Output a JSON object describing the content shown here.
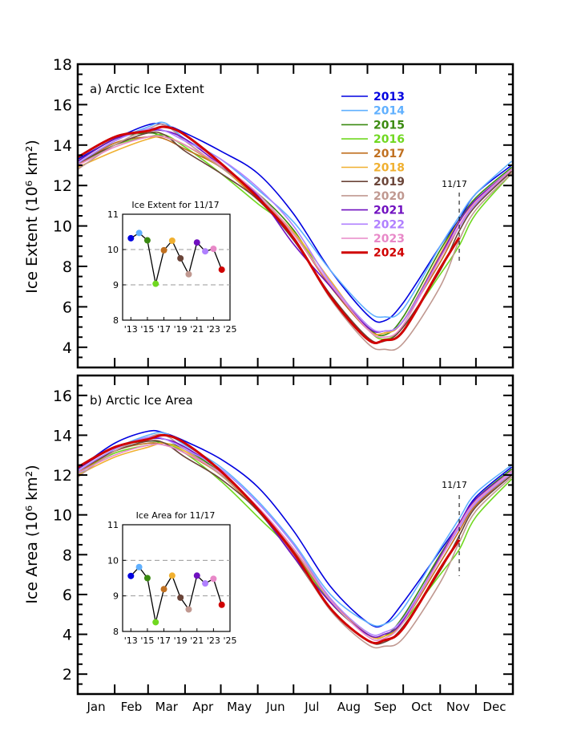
{
  "chart_data": [
    {
      "type": "line",
      "title": "a) Arctic Ice Extent",
      "xlabel": "",
      "ylabel": "Ice Extent (10⁶ km²)",
      "ylim": [
        3,
        18
      ],
      "yticks": [
        "4",
        "6",
        "8",
        "10",
        "12",
        "14",
        "16",
        "18"
      ],
      "x_month_labels": [
        "Jan",
        "Feb",
        "Mar",
        "Apr",
        "May",
        "Jun",
        "Jul",
        "Aug",
        "Sep",
        "Oct",
        "Nov",
        "Dec"
      ],
      "x": [
        "01/01",
        "02/01",
        "03/01",
        "03/15",
        "04/01",
        "05/01",
        "06/01",
        "07/01",
        "08/01",
        "09/01",
        "09/15",
        "10/01",
        "11/01",
        "11/17",
        "12/01",
        "12/31"
      ],
      "marker_label": "11/17",
      "legend_placement": "top-center",
      "series": [
        {
          "name": "2013",
          "color": "#0000e0",
          "values": [
            13.3,
            14.3,
            15.0,
            15.0,
            14.6,
            13.7,
            12.6,
            10.6,
            7.8,
            5.6,
            5.3,
            6.2,
            9.0,
            10.32,
            11.6,
            13.0
          ]
        },
        {
          "name": "2014",
          "color": "#60b0ff",
          "values": [
            13.0,
            14.2,
            14.9,
            15.1,
            14.3,
            13.3,
            11.8,
            10.2,
            7.8,
            5.8,
            5.5,
            5.9,
            9.0,
            10.47,
            11.6,
            13.2
          ]
        },
        {
          "name": "2015",
          "color": "#3a8a10",
          "values": [
            13.2,
            14.3,
            14.6,
            14.4,
            14.0,
            12.9,
            11.6,
            9.8,
            7.0,
            5.0,
            4.6,
            5.5,
            8.8,
            10.26,
            11.4,
            12.9
          ]
        },
        {
          "name": "2016",
          "color": "#70d820",
          "values": [
            13.0,
            14.0,
            14.4,
            14.5,
            13.9,
            12.6,
            11.1,
            9.7,
            7.0,
            4.9,
            4.4,
            5.0,
            7.6,
            9.03,
            10.6,
            12.6
          ]
        },
        {
          "name": "2017",
          "color": "#c07020",
          "values": [
            13.0,
            14.1,
            14.4,
            14.3,
            13.8,
            12.9,
            11.3,
            9.6,
            7.0,
            4.9,
            4.7,
            5.3,
            8.2,
            9.98,
            11.1,
            12.7
          ]
        },
        {
          "name": "2018",
          "color": "#f0b030",
          "values": [
            12.9,
            13.7,
            14.3,
            14.4,
            14.0,
            12.9,
            11.4,
            9.7,
            7.3,
            4.9,
            4.7,
            5.3,
            8.6,
            10.25,
            11.2,
            12.8
          ]
        },
        {
          "name": "2019",
          "color": "#6a4438",
          "values": [
            13.1,
            14.0,
            14.6,
            14.5,
            13.7,
            12.6,
            11.3,
            9.3,
            6.6,
            4.5,
            4.3,
            5.0,
            7.8,
            9.75,
            11.0,
            12.7
          ]
        },
        {
          "name": "2020",
          "color": "#c09890",
          "values": [
            12.8,
            14.0,
            14.8,
            15.0,
            14.2,
            12.9,
            11.5,
            9.4,
            6.4,
            4.2,
            3.9,
            4.2,
            7.0,
            9.3,
            10.8,
            12.6
          ]
        },
        {
          "name": "2021",
          "color": "#7010c0",
          "values": [
            13.2,
            14.3,
            14.7,
            14.7,
            14.3,
            13.0,
            11.5,
            9.1,
            7.0,
            5.0,
            4.8,
            5.3,
            8.5,
            10.2,
            11.3,
            12.8
          ]
        },
        {
          "name": "2022",
          "color": "#b080ff",
          "values": [
            13.1,
            14.2,
            14.8,
            14.7,
            14.2,
            13.3,
            11.9,
            10.0,
            7.2,
            5.1,
            4.8,
            5.3,
            8.4,
            9.95,
            11.1,
            12.8
          ]
        },
        {
          "name": "2023",
          "color": "#e888c8",
          "values": [
            13.0,
            13.9,
            14.4,
            14.4,
            14.0,
            13.0,
            11.6,
            9.6,
            7.1,
            4.9,
            4.5,
            5.1,
            8.4,
            10.02,
            11.2,
            12.8
          ]
        },
        {
          "name": "2024",
          "color": "#d00000",
          "values": [
            13.4,
            14.4,
            14.7,
            14.9,
            14.5,
            13.1,
            11.4,
            9.4,
            6.5,
            4.4,
            4.35,
            4.8,
            7.9,
            9.43,
            null,
            null
          ]
        }
      ],
      "inset": {
        "title": "Ice Extent for 11/17",
        "ylim": [
          8,
          11
        ],
        "yticks": [
          "8",
          "9",
          "10",
          "11"
        ],
        "xlim": [
          2012,
          2025
        ],
        "xticks": [
          "'13",
          "'15",
          "'17",
          "'19",
          "'21",
          "'23",
          "'25"
        ],
        "years": [
          2013,
          2014,
          2015,
          2016,
          2017,
          2018,
          2019,
          2020,
          2021,
          2022,
          2023,
          2024
        ],
        "values": [
          10.32,
          10.47,
          10.26,
          9.03,
          9.98,
          10.25,
          9.75,
          9.3,
          10.2,
          9.95,
          10.02,
          9.43
        ]
      }
    },
    {
      "type": "line",
      "title": "b) Arctic Ice Area",
      "xlabel": "",
      "ylabel": "Ice Area (10⁶ km²)",
      "ylim": [
        1,
        17
      ],
      "yticks": [
        "2",
        "4",
        "6",
        "8",
        "10",
        "12",
        "14",
        "16"
      ],
      "x_month_labels": [
        "Jan",
        "Feb",
        "Mar",
        "Apr",
        "May",
        "Jun",
        "Jul",
        "Aug",
        "Sep",
        "Oct",
        "Nov",
        "Dec"
      ],
      "x": [
        "01/01",
        "02/01",
        "03/01",
        "03/15",
        "04/01",
        "05/01",
        "06/01",
        "07/01",
        "08/01",
        "09/01",
        "09/15",
        "10/01",
        "11/01",
        "11/17",
        "12/01",
        "12/31"
      ],
      "marker_label": "11/17",
      "series": [
        {
          "name": "2013",
          "color": "#0000e0",
          "values": [
            12.3,
            13.6,
            14.2,
            14.1,
            13.7,
            12.8,
            11.4,
            9.2,
            6.4,
            4.6,
            4.5,
            5.6,
            8.2,
            9.56,
            10.9,
            12.4
          ]
        },
        {
          "name": "2014",
          "color": "#60b0ff",
          "values": [
            12.0,
            13.3,
            14.0,
            14.1,
            13.5,
            12.4,
            10.7,
            8.6,
            6.0,
            4.6,
            4.5,
            5.3,
            8.3,
            9.81,
            11.1,
            12.5
          ]
        },
        {
          "name": "2015",
          "color": "#3a8a10",
          "values": [
            12.3,
            13.4,
            13.7,
            13.6,
            13.3,
            12.1,
            10.3,
            8.3,
            5.6,
            4.0,
            3.9,
            4.9,
            8.0,
            9.5,
            10.8,
            12.3
          ]
        },
        {
          "name": "2016",
          "color": "#70d820",
          "values": [
            12.1,
            13.1,
            13.5,
            13.6,
            13.1,
            11.7,
            9.9,
            8.1,
            5.6,
            4.0,
            3.9,
            4.6,
            7.0,
            8.26,
            9.9,
            11.8
          ]
        },
        {
          "name": "2017",
          "color": "#c07020",
          "values": [
            12.1,
            13.2,
            13.6,
            13.5,
            13.1,
            12.0,
            10.2,
            8.2,
            5.7,
            4.0,
            3.9,
            4.6,
            7.6,
            9.19,
            10.5,
            12.1
          ]
        },
        {
          "name": "2018",
          "color": "#f0b030",
          "values": [
            12.0,
            12.9,
            13.4,
            13.6,
            13.2,
            12.0,
            10.3,
            8.3,
            5.8,
            4.0,
            3.9,
            4.6,
            7.9,
            9.57,
            10.7,
            12.2
          ]
        },
        {
          "name": "2019",
          "color": "#6a4438",
          "values": [
            12.2,
            13.2,
            13.7,
            13.6,
            12.9,
            11.8,
            10.2,
            7.9,
            5.3,
            3.7,
            3.6,
            4.4,
            7.2,
            8.95,
            10.4,
            12.0
          ]
        },
        {
          "name": "2020",
          "color": "#c09890",
          "values": [
            11.9,
            13.2,
            13.9,
            14.0,
            13.3,
            12.0,
            10.3,
            8.0,
            5.2,
            3.5,
            3.4,
            3.8,
            6.6,
            8.62,
            10.2,
            11.9
          ]
        },
        {
          "name": "2021",
          "color": "#7010c0",
          "values": [
            12.3,
            13.4,
            13.8,
            13.8,
            13.4,
            12.2,
            10.3,
            7.9,
            5.6,
            4.0,
            4.0,
            4.7,
            7.9,
            9.57,
            10.8,
            12.2
          ]
        },
        {
          "name": "2022",
          "color": "#b080ff",
          "values": [
            12.2,
            13.3,
            13.9,
            13.8,
            13.3,
            12.3,
            10.6,
            8.5,
            5.8,
            4.1,
            4.1,
            4.8,
            7.8,
            9.35,
            10.6,
            12.1
          ]
        },
        {
          "name": "2023",
          "color": "#e888c8",
          "values": [
            12.1,
            13.0,
            13.5,
            13.5,
            13.1,
            12.1,
            10.4,
            8.3,
            5.7,
            3.9,
            3.8,
            4.6,
            7.8,
            9.48,
            10.7,
            12.2
          ]
        },
        {
          "name": "2024",
          "color": "#d00000",
          "values": [
            12.4,
            13.4,
            13.8,
            14.0,
            13.6,
            12.2,
            10.3,
            8.1,
            5.3,
            3.7,
            3.7,
            4.3,
            7.3,
            8.75,
            null,
            null
          ]
        }
      ],
      "inset": {
        "title": "Ice Area for 11/17",
        "ylim": [
          8,
          11
        ],
        "yticks": [
          "8",
          "9",
          "10",
          "11"
        ],
        "xlim": [
          2012,
          2025
        ],
        "xticks": [
          "'13",
          "'15",
          "'17",
          "'19",
          "'21",
          "'23",
          "'25"
        ],
        "years": [
          2013,
          2014,
          2015,
          2016,
          2017,
          2018,
          2019,
          2020,
          2021,
          2022,
          2023,
          2024
        ],
        "values": [
          9.56,
          9.81,
          9.5,
          8.26,
          9.19,
          9.57,
          8.95,
          8.62,
          9.57,
          9.35,
          9.48,
          8.75
        ]
      }
    }
  ]
}
